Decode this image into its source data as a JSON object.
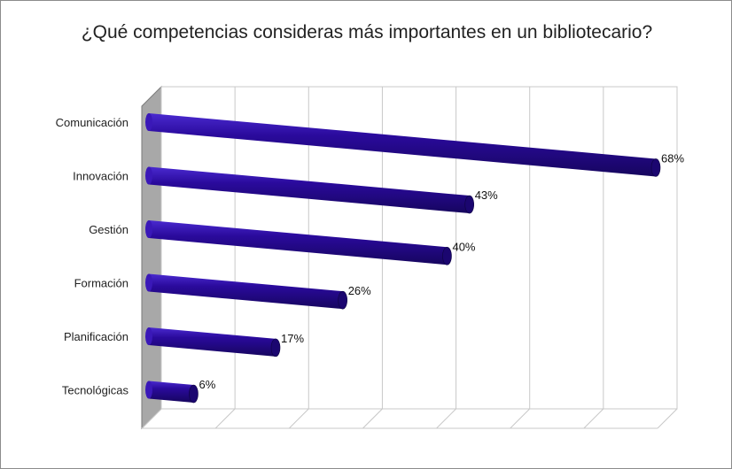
{
  "chart_data": {
    "type": "bar",
    "orientation": "horizontal",
    "style": "3d-cylinder",
    "title": "¿Qué competencias consideras más importantes en un bibliotecario?",
    "categories": [
      "Comunicación",
      "Innovación",
      "Gestión",
      "Formación",
      "Planificación",
      "Tecnológicas"
    ],
    "values": [
      68,
      43,
      40,
      26,
      17,
      6
    ],
    "value_labels": [
      "68%",
      "43%",
      "40%",
      "26%",
      "17%",
      "6%"
    ],
    "xlim": [
      0,
      70
    ],
    "grid": true,
    "legend": "none",
    "colors": {
      "bar": "#2a0a9c",
      "bar_end": "#1b0670",
      "wall": "#a8a8a8",
      "grid": "#c8c8c8"
    }
  }
}
